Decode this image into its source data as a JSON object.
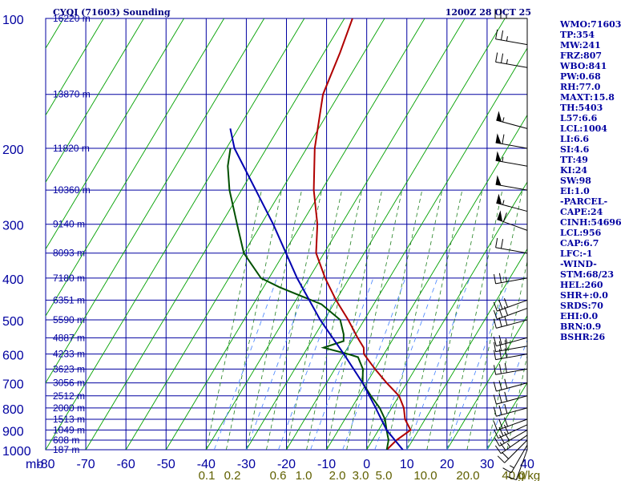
{
  "header": {
    "title": "CYQI (71603) Sounding",
    "datetime": "1200Z 28 OCT 25"
  },
  "chart_data": {
    "type": "line",
    "title": "CYQI (71603) Sounding",
    "subtitle": "1200Z 28 OCT 25",
    "x_axis": {
      "label": "",
      "range": [
        -80,
        40
      ],
      "ticks": [
        "-80",
        "-70",
        "-60",
        "-50",
        "-40",
        "-30",
        "-20",
        "-10",
        "0",
        "10",
        "20",
        "30",
        "40"
      ]
    },
    "y_axis": {
      "label": "",
      "scale": "log",
      "range": [
        1000,
        100
      ],
      "ticks": [
        "100",
        "200",
        "300",
        "400",
        "500",
        "600",
        "700",
        "800",
        "900",
        "1000"
      ]
    },
    "height_labels": [
      {
        "p": 100,
        "label": "16220 m"
      },
      {
        "p": 150,
        "label": "13870 m"
      },
      {
        "p": 200,
        "label": "11820 m"
      },
      {
        "p": 250,
        "label": "10360 m"
      },
      {
        "p": 300,
        "label": "9140 m"
      },
      {
        "p": 350,
        "label": "8093 m"
      },
      {
        "p": 400,
        "label": "7180 m"
      },
      {
        "p": 450,
        "label": "6351 m"
      },
      {
        "p": 500,
        "label": "5590 m"
      },
      {
        "p": 550,
        "label": "4887 m"
      },
      {
        "p": 600,
        "label": "4233 m"
      },
      {
        "p": 650,
        "label": "3623 m"
      },
      {
        "p": 700,
        "label": "3056 m"
      },
      {
        "p": 750,
        "label": "2512 m"
      },
      {
        "p": 800,
        "label": "2000 m"
      },
      {
        "p": 850,
        "label": "1513 m"
      },
      {
        "p": 900,
        "label": "1049 m"
      },
      {
        "p": 950,
        "label": "608 m"
      },
      {
        "p": 1000,
        "label": "187 m"
      }
    ],
    "mixing_ratio_labels": [
      "0.1",
      "0.2",
      "0.6",
      "1.0",
      "2.0",
      "3.0",
      "5.0",
      "10.0",
      "20.0",
      "40.0"
    ],
    "mixing_ratio_unit": "g/kg",
    "series": [
      {
        "kind": "temperature",
        "color": "#b00000",
        "points": [
          [
            1000,
            5
          ],
          [
            950,
            6
          ],
          [
            900,
            8
          ],
          [
            850,
            5
          ],
          [
            800,
            3
          ],
          [
            750,
            0
          ],
          [
            700,
            -5
          ],
          [
            650,
            -10
          ],
          [
            600,
            -15
          ],
          [
            580,
            -16
          ],
          [
            550,
            -19
          ],
          [
            500,
            -24
          ],
          [
            450,
            -30
          ],
          [
            400,
            -36
          ],
          [
            350,
            -42
          ],
          [
            300,
            -46
          ],
          [
            250,
            -52
          ],
          [
            200,
            -58
          ],
          [
            150,
            -64
          ],
          [
            120,
            -66
          ],
          [
            100,
            -68
          ]
        ]
      },
      {
        "kind": "dewpoint",
        "color": "#005000",
        "points": [
          [
            1000,
            5
          ],
          [
            950,
            4
          ],
          [
            900,
            2
          ],
          [
            850,
            0
          ],
          [
            800,
            -3
          ],
          [
            750,
            -7
          ],
          [
            700,
            -11
          ],
          [
            650,
            -13
          ],
          [
            610,
            -16
          ],
          [
            600,
            -19
          ],
          [
            580,
            -26
          ],
          [
            560,
            -22
          ],
          [
            540,
            -23
          ],
          [
            500,
            -26
          ],
          [
            460,
            -33
          ],
          [
            420,
            -46
          ],
          [
            400,
            -52
          ],
          [
            350,
            -60
          ],
          [
            300,
            -66
          ],
          [
            250,
            -73
          ],
          [
            220,
            -77
          ],
          [
            200,
            -79
          ]
        ]
      },
      {
        "kind": "parcel",
        "color": "#0000b0",
        "points": [
          [
            1000,
            9
          ],
          [
            900,
            2
          ],
          [
            800,
            -4
          ],
          [
            700,
            -11
          ],
          [
            600,
            -20
          ],
          [
            500,
            -31
          ],
          [
            400,
            -43
          ],
          [
            300,
            -57
          ],
          [
            200,
            -78
          ],
          [
            180,
            -82
          ]
        ]
      }
    ],
    "grid": true
  },
  "indices": [
    "WMO:71603",
    "TP:354",
    "MW:241",
    "FRZ:807",
    "WBO:841",
    "PW:0.68",
    "RH:77.0",
    "MAXT:15.8",
    "TH:5403",
    "L57:6.6",
    "LCL:1004",
    "LI:6.6",
    "SI:4.6",
    "TT:49",
    "KI:24",
    "SW:98",
    "EI:1.0",
    "-PARCEL-",
    "CAPE:24",
    "CINH:54696",
    "LCL:956",
    "CAP:6.7",
    "LFC:-1",
    "-WIND-",
    "STM:68/23",
    "HEL:260",
    "SHR+:0.0",
    "SRDS:70",
    "EHI:0.0",
    "BRN:0.9",
    "BSHR:26"
  ],
  "wind_barbs": [
    {
      "p": 1000,
      "dir": 200,
      "spd": 10
    },
    {
      "p": 975,
      "dir": 210,
      "spd": 15
    },
    {
      "p": 950,
      "dir": 225,
      "spd": 20
    },
    {
      "p": 925,
      "dir": 235,
      "spd": 25
    },
    {
      "p": 900,
      "dir": 240,
      "spd": 30
    },
    {
      "p": 875,
      "dir": 245,
      "spd": 30
    },
    {
      "p": 850,
      "dir": 250,
      "spd": 30
    },
    {
      "p": 800,
      "dir": 255,
      "spd": 30
    },
    {
      "p": 750,
      "dir": 255,
      "spd": 30
    },
    {
      "p": 700,
      "dir": 255,
      "spd": 30
    },
    {
      "p": 650,
      "dir": 260,
      "spd": 30
    },
    {
      "p": 600,
      "dir": 260,
      "spd": 30
    },
    {
      "p": 575,
      "dir": 260,
      "spd": 30
    },
    {
      "p": 550,
      "dir": 255,
      "spd": 25
    },
    {
      "p": 500,
      "dir": 255,
      "spd": 30
    },
    {
      "p": 470,
      "dir": 250,
      "spd": 30
    },
    {
      "p": 450,
      "dir": 250,
      "spd": 30
    },
    {
      "p": 400,
      "dir": 260,
      "spd": 25
    },
    {
      "p": 350,
      "dir": 280,
      "spd": 20
    },
    {
      "p": 310,
      "dir": 290,
      "spd": 60
    },
    {
      "p": 280,
      "dir": 285,
      "spd": 55
    },
    {
      "p": 250,
      "dir": 280,
      "spd": 50
    },
    {
      "p": 220,
      "dir": 280,
      "spd": 55
    },
    {
      "p": 200,
      "dir": 280,
      "spd": 60
    },
    {
      "p": 180,
      "dir": 285,
      "spd": 55
    },
    {
      "p": 130,
      "dir": 280,
      "spd": 25
    },
    {
      "p": 115,
      "dir": 280,
      "spd": 25
    },
    {
      "p": 100,
      "dir": 270,
      "spd": 25
    }
  ],
  "colors": {
    "grid": "#0000a0",
    "dry_adiabat": "#00a000",
    "moist_adiabat": "#208020",
    "mixing_ratio": "#4080ff",
    "axis_text": "#0000a0",
    "mixing_text": "#606000"
  }
}
